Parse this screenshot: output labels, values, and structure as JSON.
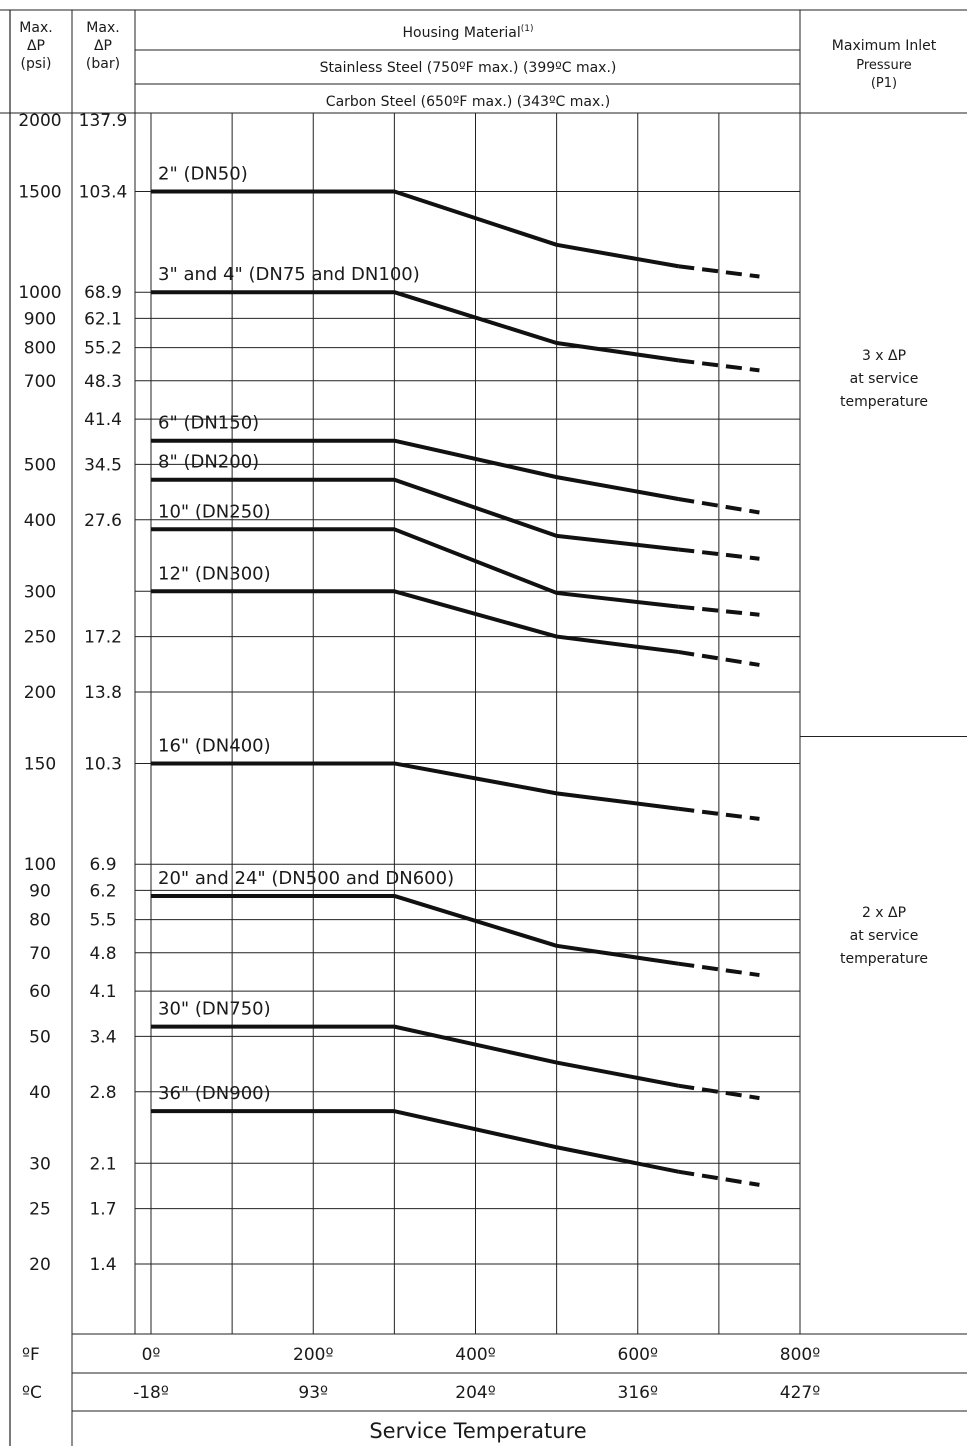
{
  "chart_data": {
    "type": "line",
    "title": "",
    "header": {
      "col1": [
        "Max.",
        "ΔP",
        "(psi)"
      ],
      "col2": [
        "Max.",
        "ΔP",
        "(bar)"
      ],
      "housing_material": "Housing Material",
      "housing_material_sup": "(1)",
      "stainless_steel": "Stainless Steel (750ºF max.) (399ºC max.)",
      "carbon_steel": "Carbon Steel (650ºF max.) (343ºC max.)",
      "max_inlet_pressure": [
        "Maximum Inlet",
        "Pressure",
        "(P1)"
      ]
    },
    "xlabel": "Service Temperature",
    "x_unit_labels": {
      "f": "ºF",
      "c": "ºC"
    },
    "xlim": [
      0,
      800
    ],
    "x_ticks_f": [
      {
        "v": 0,
        "label": "0º"
      },
      {
        "v": 200,
        "label": "200º"
      },
      {
        "v": 400,
        "label": "400º"
      },
      {
        "v": 600,
        "label": "600º"
      },
      {
        "v": 800,
        "label": "800º"
      }
    ],
    "x_ticks_c": [
      {
        "v": 0,
        "label": "-18º"
      },
      {
        "v": 200,
        "label": "93º"
      },
      {
        "v": 400,
        "label": "204º"
      },
      {
        "v": 600,
        "label": "316º"
      },
      {
        "v": 800,
        "label": "427º"
      }
    ],
    "yscale": "log",
    "ylim_psi": [
      20,
      2000
    ],
    "y_ticks": [
      {
        "psi": 2000,
        "psi_label": "2000",
        "bar_label": "137.9"
      },
      {
        "psi": 1500,
        "psi_label": "1500",
        "bar_label": "103.4"
      },
      {
        "psi": 1000,
        "psi_label": "1000",
        "bar_label": "68.9"
      },
      {
        "psi": 900,
        "psi_label": "900",
        "bar_label": "62.1"
      },
      {
        "psi": 800,
        "psi_label": "800",
        "bar_label": "55.2"
      },
      {
        "psi": 700,
        "psi_label": "700",
        "bar_label": "48.3"
      },
      {
        "psi": 600,
        "psi_label": "",
        "bar_label": "41.4"
      },
      {
        "psi": 500,
        "psi_label": "500",
        "bar_label": "34.5"
      },
      {
        "psi": 400,
        "psi_label": "400",
        "bar_label": "27.6"
      },
      {
        "psi": 300,
        "psi_label": "300",
        "bar_label": ""
      },
      {
        "psi": 250,
        "psi_label": "250",
        "bar_label": "17.2"
      },
      {
        "psi": 200,
        "psi_label": "200",
        "bar_label": "13.8"
      },
      {
        "psi": 150,
        "psi_label": "150",
        "bar_label": "10.3"
      },
      {
        "psi": 100,
        "psi_label": "100",
        "bar_label": "6.9"
      },
      {
        "psi": 90,
        "psi_label": "90",
        "bar_label": "6.2"
      },
      {
        "psi": 80,
        "psi_label": "80",
        "bar_label": "5.5"
      },
      {
        "psi": 70,
        "psi_label": "70",
        "bar_label": "4.8"
      },
      {
        "psi": 60,
        "psi_label": "60",
        "bar_label": "4.1"
      },
      {
        "psi": 50,
        "psi_label": "50",
        "bar_label": "3.4"
      },
      {
        "psi": 40,
        "psi_label": "40",
        "bar_label": "2.8"
      },
      {
        "psi": 30,
        "psi_label": "30",
        "bar_label": "2.1"
      },
      {
        "psi": 25,
        "psi_label": "25",
        "bar_label": "1.7"
      },
      {
        "psi": 20,
        "psi_label": "20",
        "bar_label": "1.4"
      }
    ],
    "grid": true,
    "series": [
      {
        "name": "2\" (DN50)",
        "solid": [
          [
            0,
            1500
          ],
          [
            300,
            1500
          ],
          [
            500,
            1210
          ],
          [
            650,
            1110
          ]
        ],
        "dashed": [
          [
            650,
            1110
          ],
          [
            750,
            1065
          ]
        ]
      },
      {
        "name": "3\" and 4\" (DN75 and DN100)",
        "solid": [
          [
            0,
            1000
          ],
          [
            300,
            1000
          ],
          [
            500,
            815
          ],
          [
            650,
            760
          ]
        ],
        "dashed": [
          [
            650,
            760
          ],
          [
            750,
            730
          ]
        ]
      },
      {
        "name": "6\" (DN150)",
        "solid": [
          [
            0,
            550
          ],
          [
            300,
            550
          ],
          [
            500,
            475
          ],
          [
            650,
            435
          ]
        ],
        "dashed": [
          [
            650,
            435
          ],
          [
            750,
            412
          ]
        ]
      },
      {
        "name": "8\" (DN200)",
        "solid": [
          [
            0,
            470
          ],
          [
            300,
            470
          ],
          [
            500,
            375
          ],
          [
            650,
            355
          ]
        ],
        "dashed": [
          [
            650,
            355
          ],
          [
            750,
            342
          ]
        ]
      },
      {
        "name": "10\" (DN250)",
        "solid": [
          [
            0,
            385
          ],
          [
            300,
            385
          ],
          [
            500,
            298
          ],
          [
            650,
            282
          ]
        ],
        "dashed": [
          [
            650,
            282
          ],
          [
            750,
            273
          ]
        ]
      },
      {
        "name": "12\" (DN300)",
        "solid": [
          [
            0,
            300
          ],
          [
            300,
            300
          ],
          [
            500,
            250
          ],
          [
            650,
            235
          ]
        ],
        "dashed": [
          [
            650,
            235
          ],
          [
            750,
            223
          ]
        ]
      },
      {
        "name": "16\" (DN400)",
        "solid": [
          [
            0,
            150
          ],
          [
            300,
            150
          ],
          [
            500,
            133
          ],
          [
            650,
            125
          ]
        ],
        "dashed": [
          [
            650,
            125
          ],
          [
            750,
            120
          ]
        ]
      },
      {
        "name": "20\" and 24\" (DN500 and DN600)",
        "solid": [
          [
            0,
            88
          ],
          [
            300,
            88
          ],
          [
            500,
            72
          ],
          [
            650,
            67
          ]
        ],
        "dashed": [
          [
            650,
            67
          ],
          [
            750,
            64
          ]
        ]
      },
      {
        "name": "30\" (DN750)",
        "solid": [
          [
            0,
            52
          ],
          [
            300,
            52
          ],
          [
            500,
            45
          ],
          [
            650,
            41
          ]
        ],
        "dashed": [
          [
            650,
            41
          ],
          [
            750,
            39
          ]
        ]
      },
      {
        "name": "36\" (DN900)",
        "solid": [
          [
            0,
            37
          ],
          [
            300,
            37
          ],
          [
            500,
            32
          ],
          [
            650,
            29
          ]
        ],
        "dashed": [
          [
            650,
            29
          ],
          [
            750,
            27.5
          ]
        ]
      }
    ],
    "inlet_pressure_notes": [
      {
        "psi_range": [
          150,
          2000
        ],
        "lines": [
          "3 x ΔP",
          "at service",
          "temperature"
        ]
      },
      {
        "psi_range": [
          20,
          150
        ],
        "lines": [
          "2 x ΔP",
          "at service",
          "temperature"
        ]
      }
    ]
  }
}
